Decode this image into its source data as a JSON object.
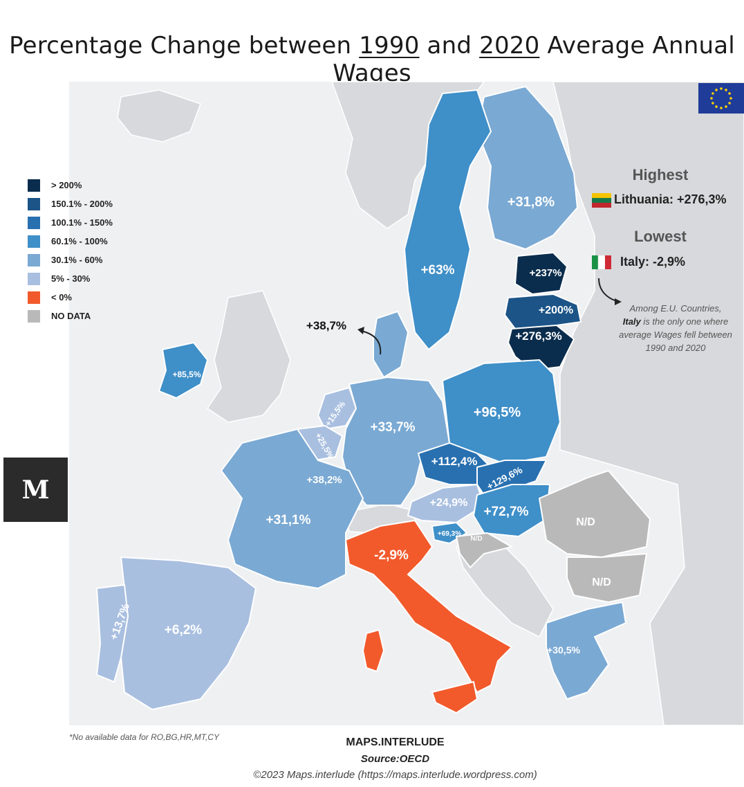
{
  "title": {
    "prefix": "Percentage Change between ",
    "year1": "1990",
    "middle": " and ",
    "year2": "2020",
    "suffix": " Average Annual Wages"
  },
  "legend": [
    {
      "label": "> 200%",
      "color": "#0b2d4d"
    },
    {
      "label": "150.1% - 200%",
      "color": "#1c5487"
    },
    {
      "label": "100.1% - 150%",
      "color": "#2870b0"
    },
    {
      "label": "60.1% - 100%",
      "color": "#3f8fc8"
    },
    {
      "label": "30.1% - 60%",
      "color": "#7aa9d3"
    },
    {
      "label": "5% - 30%",
      "color": "#a9bfe0"
    },
    {
      "label": "< 0%",
      "color": "#f25a2c"
    },
    {
      "label": "NO DATA",
      "color": "#b9b9b9"
    }
  ],
  "highest": {
    "heading": "Highest",
    "country": "Lithuania: +276,3%"
  },
  "lowest": {
    "heading": "Lowest",
    "country": "Italy: -2,9%"
  },
  "note": {
    "line1": "Among E.U. Countries,",
    "bold": "Italy",
    "line2": " is the only one where",
    "line3": "average Wages fell between",
    "line4": "1990 and 2020"
  },
  "countries": [
    {
      "name": "Finland",
      "value": "+31,8%"
    },
    {
      "name": "Sweden",
      "value": "+63%"
    },
    {
      "name": "Estonia",
      "value": "+237%"
    },
    {
      "name": "Latvia",
      "value": "+200%"
    },
    {
      "name": "Lithuania",
      "value": "+276,3%"
    },
    {
      "name": "Denmark",
      "value": "+38,7%"
    },
    {
      "name": "Ireland",
      "value": "+85,5%"
    },
    {
      "name": "Netherlands",
      "value": "+15,5%"
    },
    {
      "name": "Belgium",
      "value": "+25,5%"
    },
    {
      "name": "Luxembourg",
      "value": "+38,2%"
    },
    {
      "name": "Germany",
      "value": "+33,7%"
    },
    {
      "name": "Poland",
      "value": "+96,5%"
    },
    {
      "name": "Czechia",
      "value": "+112,4%"
    },
    {
      "name": "Slovakia",
      "value": "+129,6%"
    },
    {
      "name": "Austria",
      "value": "+24,9%"
    },
    {
      "name": "Hungary",
      "value": "+72,7%"
    },
    {
      "name": "Slovenia",
      "value": "+69,3%"
    },
    {
      "name": "Croatia",
      "value": "N/D"
    },
    {
      "name": "Romania",
      "value": "N/D"
    },
    {
      "name": "Bulgaria",
      "value": "N/D"
    },
    {
      "name": "France",
      "value": "+31,1%"
    },
    {
      "name": "Italy",
      "value": "-2,9%"
    },
    {
      "name": "Spain",
      "value": "+6,2%"
    },
    {
      "name": "Portugal",
      "value": "+13,7%"
    },
    {
      "name": "Greece",
      "value": "+30,5%"
    }
  ],
  "footnote": "*No available data for RO,BG,HR,MT,CY",
  "footer": {
    "brand": "MAPS.INTERLUDE",
    "source": "Source:OECD",
    "copyright": "©2023 Maps.interlude (https://maps.interlude.wordpress.com)"
  },
  "logo": "M"
}
